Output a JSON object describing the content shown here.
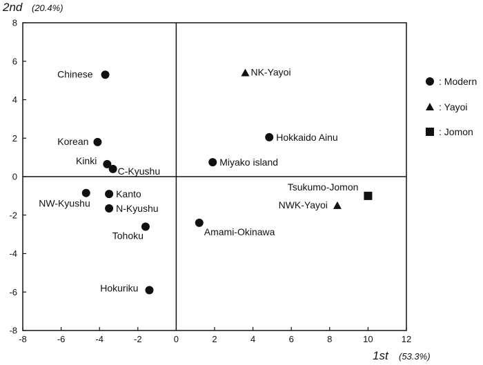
{
  "chart_data": {
    "type": "scatter",
    "title": "",
    "xlabel": "1st",
    "xlabel_pct": "(53.3%)",
    "ylabel": "2nd",
    "ylabel_pct": "(20.4%)",
    "xlim": [
      -8,
      12
    ],
    "ylim": [
      -8,
      8
    ],
    "xticks": [
      -8,
      -6,
      -4,
      -2,
      0,
      2,
      4,
      6,
      8,
      10,
      12
    ],
    "yticks": [
      -8,
      -6,
      -4,
      -2,
      0,
      2,
      4,
      6,
      8
    ],
    "grid": false,
    "reference_lines": [
      0,
      0
    ],
    "legend_position": "right",
    "legend": [
      {
        "marker": "circle",
        "text": ": Modern"
      },
      {
        "marker": "triangle",
        "text": ": Yayoi"
      },
      {
        "marker": "square",
        "text": ": Jomon"
      }
    ],
    "points": [
      {
        "label": "Chinese",
        "x": -3.7,
        "y": 5.3,
        "marker": "circle"
      },
      {
        "label": "Korean",
        "x": -4.1,
        "y": 1.8,
        "marker": "circle"
      },
      {
        "label": "Kinki",
        "x": -3.6,
        "y": 0.65,
        "marker": "circle"
      },
      {
        "label": "C-Kyushu",
        "x": -3.3,
        "y": 0.4,
        "marker": "circle"
      },
      {
        "label": "NW-Kyushu",
        "x": -4.7,
        "y": -0.85,
        "marker": "circle"
      },
      {
        "label": "Kanto",
        "x": -3.5,
        "y": -0.9,
        "marker": "circle"
      },
      {
        "label": "N-Kyushu",
        "x": -3.5,
        "y": -1.65,
        "marker": "circle"
      },
      {
        "label": "Tohoku",
        "x": -1.6,
        "y": -2.6,
        "marker": "circle"
      },
      {
        "label": "Hokuriku",
        "x": -1.4,
        "y": -5.9,
        "marker": "circle"
      },
      {
        "label": "Amami-Okinawa",
        "x": 1.2,
        "y": -2.4,
        "marker": "circle"
      },
      {
        "label": "Miyako island",
        "x": 1.9,
        "y": 0.75,
        "marker": "circle"
      },
      {
        "label": "Hokkaido Ainu",
        "x": 4.85,
        "y": 2.05,
        "marker": "circle"
      },
      {
        "label": "NK-Yayoi",
        "x": 3.6,
        "y": 5.4,
        "marker": "triangle"
      },
      {
        "label": "NWK-Yayoi",
        "x": 8.4,
        "y": -1.5,
        "marker": "triangle"
      },
      {
        "label": "Tsukumo-Jomon",
        "x": 10.0,
        "y": -1.0,
        "marker": "square"
      }
    ]
  }
}
